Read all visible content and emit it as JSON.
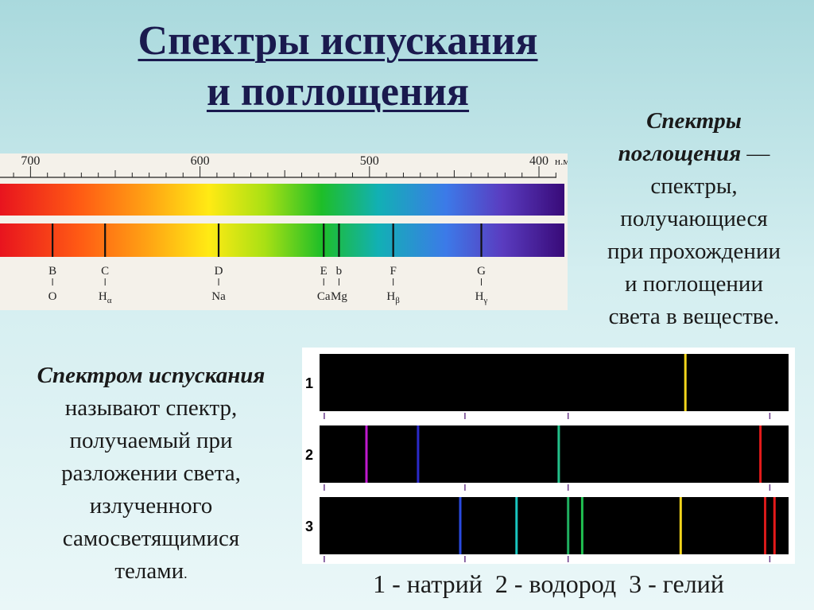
{
  "title": {
    "line1": "Спектры испускания",
    "line2": "и поглощения"
  },
  "absorption_definition": {
    "term_line1": "Спектры",
    "term_line2": "поглощения",
    "dash": " —",
    "lines": [
      "спектры,",
      "получающиеся",
      "при прохождении",
      "и поглощении",
      "света в веществе."
    ]
  },
  "emission_definition": {
    "term": "Спектром испускания",
    "lines": [
      "называют спектр,",
      "получаемый при",
      "разложении света,",
      "излученного",
      "самосветящимися",
      "телами"
    ],
    "end_dot": "."
  },
  "solar_spectrum": {
    "scale_labels": [
      {
        "value": 700,
        "text": "700"
      },
      {
        "value": 600,
        "text": "600"
      },
      {
        "value": 500,
        "text": "500"
      },
      {
        "value": 400,
        "text": "400"
      }
    ],
    "unit": "н.м",
    "wavelength_range": [
      718,
      385
    ],
    "fraunhofer_lines": [
      {
        "wavelength": 687,
        "letter": "B",
        "element": "O",
        "sub": ""
      },
      {
        "wavelength": 656,
        "letter": "C",
        "element": "H",
        "sub": "α"
      },
      {
        "wavelength": 589,
        "letter": "D",
        "element": "Na",
        "sub": ""
      },
      {
        "wavelength": 527,
        "letter": "E",
        "element": "Ca",
        "sub": ""
      },
      {
        "wavelength": 518,
        "letter": "b",
        "element": "Mg",
        "sub": ""
      },
      {
        "wavelength": 486,
        "letter": "F",
        "element": "H",
        "sub": "β"
      },
      {
        "wavelength": 434,
        "letter": "G",
        "element": "H",
        "sub": "γ"
      }
    ]
  },
  "emission_spectra": [
    {
      "label": "1",
      "lines": [
        {
          "pos": 0.78,
          "color": "#f2d51c"
        }
      ]
    },
    {
      "label": "2",
      "lines": [
        {
          "pos": 0.1,
          "color": "#c01ad0"
        },
        {
          "pos": 0.21,
          "color": "#2a2ac8"
        },
        {
          "pos": 0.51,
          "color": "#22c08a"
        },
        {
          "pos": 0.94,
          "color": "#e41a1a"
        }
      ]
    },
    {
      "label": "3",
      "lines": [
        {
          "pos": 0.3,
          "color": "#2a4ae0"
        },
        {
          "pos": 0.42,
          "color": "#19c6c0"
        },
        {
          "pos": 0.53,
          "color": "#1fb060"
        },
        {
          "pos": 0.56,
          "color": "#20c050"
        },
        {
          "pos": 0.77,
          "color": "#f2d51c"
        },
        {
          "pos": 0.95,
          "color": "#d81a1a"
        },
        {
          "pos": 0.97,
          "color": "#e41a1a"
        }
      ]
    }
  ],
  "emission_legend": "1 - натрий  2 - водород  3 - гелий"
}
